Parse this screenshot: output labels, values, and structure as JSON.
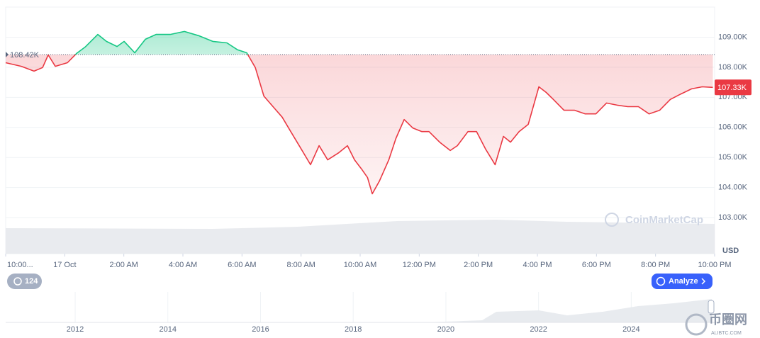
{
  "chart_data": {
    "type": "line",
    "x": [
      0,
      0.53,
      0.96,
      1.25,
      1.44,
      1.68,
      2.09,
      2.4,
      2.69,
      3.12,
      3.41,
      3.77,
      4.01,
      4.37,
      4.73,
      5.09,
      5.57,
      6.05,
      6.53,
      7.01,
      7.49,
      7.85,
      8.16,
      8.45,
      8.74,
      9.05,
      9.36,
      9.65,
      10.01,
      10.32,
      10.61,
      10.9,
      11.28,
      11.57,
      11.81,
      12.05,
      12.25,
      12.41,
      12.65,
      12.97,
      13.21,
      13.49,
      13.78,
      14.09,
      14.33,
      14.69,
      15.05,
      15.29,
      15.65,
      15.94,
      16.25,
      16.57,
      16.85,
      17.09,
      17.38,
      17.69,
      18.05,
      18.3,
      18.54,
      18.9,
      19.26,
      19.62,
      19.98,
      20.34,
      20.7,
      21.06,
      21.42,
      21.78,
      22.14,
      22.5,
      22.86,
      23.22,
      23.58,
      23.94
    ],
    "values": [
      108150,
      108030,
      107870,
      107990,
      108410,
      108030,
      108150,
      108460,
      108670,
      109090,
      108860,
      108690,
      108860,
      108480,
      108930,
      109090,
      109090,
      109190,
      109050,
      108860,
      108810,
      108580,
      108480,
      107990,
      107040,
      106690,
      106340,
      105860,
      105270,
      104760,
      105390,
      104920,
      105160,
      105390,
      104920,
      104610,
      104330,
      103790,
      104210,
      104920,
      105630,
      106260,
      105980,
      105860,
      105860,
      105510,
      105230,
      105390,
      105860,
      105860,
      105270,
      104760,
      105700,
      105510,
      105860,
      106100,
      107350,
      107160,
      106930,
      106570,
      106570,
      106450,
      106450,
      106810,
      106740,
      106690,
      106690,
      106450,
      106570,
      106930,
      107110,
      107280,
      107350,
      107330
    ],
    "xlim": [
      0,
      24
    ],
    "xticks": [
      {
        "value": 0,
        "label": "10:00..."
      },
      {
        "value": 2,
        "label": "17 Oct"
      },
      {
        "value": 4,
        "label": "2:00 AM"
      },
      {
        "value": 6,
        "label": "4:00 AM"
      },
      {
        "value": 8,
        "label": "6:00 AM"
      },
      {
        "value": 10,
        "label": "8:00 AM"
      },
      {
        "value": 12,
        "label": "10:00 AM"
      },
      {
        "value": 14,
        "label": "12:00 PM"
      },
      {
        "value": 16,
        "label": "2:00 PM"
      },
      {
        "value": 18,
        "label": "4:00 PM"
      },
      {
        "value": 20,
        "label": "6:00 PM"
      },
      {
        "value": 22,
        "label": "8:00 PM"
      },
      {
        "value": 24,
        "label": "10:00 PM"
      }
    ],
    "ylim": [
      101800,
      110000
    ],
    "yticks": [
      {
        "value": 103000,
        "label": "103.00K"
      },
      {
        "value": 104000,
        "label": "104.00K"
      },
      {
        "value": 105000,
        "label": "105.00K"
      },
      {
        "value": 106000,
        "label": "106.00K"
      },
      {
        "value": 107000,
        "label": "107.00K"
      },
      {
        "value": 108000,
        "label": "108.00K"
      },
      {
        "value": 109000,
        "label": "109.00K"
      }
    ],
    "y_label": "USD",
    "grid": true,
    "up_color": "#16c784",
    "down_color": "#ea3943",
    "baseline": {
      "value": 108420,
      "label": "108.42K"
    },
    "last_price": {
      "value": 107330,
      "label": "107.33K"
    },
    "watermark": "CoinMarketCap",
    "badge": "124",
    "button": "Analyze",
    "navigator": {
      "xlim": [
        2010.5,
        2025.8
      ],
      "xticks": [
        2012,
        2014,
        2016,
        2018,
        2020,
        2022,
        2024
      ]
    }
  },
  "overlay": {
    "logo": "币圈网",
    "site": "ALIBTC.COM"
  }
}
